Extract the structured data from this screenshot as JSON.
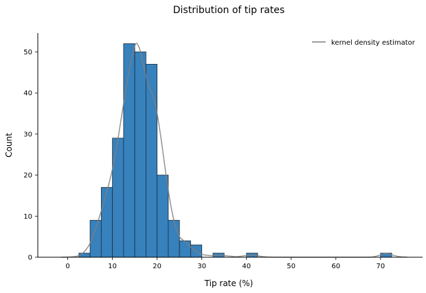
{
  "chart_data": {
    "type": "bar",
    "title": "Distribution of tip rates",
    "xlabel": "Tip rate (%)",
    "ylabel": "Count",
    "xlim": [
      -6.7,
      79.4
    ],
    "ylim": [
      0,
      54.6
    ],
    "x_ticks": [
      0,
      10,
      20,
      30,
      40,
      50,
      60,
      70
    ],
    "y_ticks": [
      0,
      10,
      20,
      30,
      40,
      50
    ],
    "grid": false,
    "legend_position": "top-right",
    "bar_color": "#3781bc",
    "bar_edge_color": "#1c2c3c",
    "kde_color": "#7f7f7f",
    "bins": [
      {
        "x0": 2.5,
        "x1": 5.0,
        "count": 1
      },
      {
        "x0": 5.0,
        "x1": 7.5,
        "count": 9
      },
      {
        "x0": 7.5,
        "x1": 10.0,
        "count": 17
      },
      {
        "x0": 10.0,
        "x1": 12.5,
        "count": 29
      },
      {
        "x0": 12.5,
        "x1": 15.0,
        "count": 52
      },
      {
        "x0": 15.0,
        "x1": 17.5,
        "count": 50
      },
      {
        "x0": 17.5,
        "x1": 20.0,
        "count": 47
      },
      {
        "x0": 20.0,
        "x1": 22.5,
        "count": 20
      },
      {
        "x0": 22.5,
        "x1": 25.0,
        "count": 9
      },
      {
        "x0": 25.0,
        "x1": 27.5,
        "count": 4
      },
      {
        "x0": 27.5,
        "x1": 30.0,
        "count": 3
      },
      {
        "x0": 32.5,
        "x1": 35.0,
        "count": 1
      },
      {
        "x0": 40.0,
        "x1": 42.5,
        "count": 1
      },
      {
        "x0": 70.0,
        "x1": 72.5,
        "count": 1
      }
    ],
    "kde": {
      "name": "kernel density estimator",
      "x": [
        -1.5,
        1,
        3,
        5,
        7,
        9,
        10.5,
        12,
        13.5,
        15,
        16,
        17,
        18,
        19,
        20,
        21,
        22,
        23,
        24,
        25,
        26,
        27,
        28,
        29,
        30,
        31,
        32,
        33,
        34,
        35,
        36,
        37,
        38,
        40,
        41,
        42,
        43,
        45,
        50,
        55,
        60,
        65,
        68,
        69.5,
        70.5,
        71.5,
        72.5,
        74,
        76
      ],
      "y": [
        0,
        0.1,
        0.7,
        3.4,
        9.5,
        17,
        24,
        34,
        44,
        51.5,
        51,
        46.5,
        42,
        39.5,
        35,
        28,
        20,
        13,
        8,
        5,
        4,
        3,
        2,
        1.2,
        0.7,
        0.5,
        0.4,
        0.45,
        0.5,
        0.4,
        0.3,
        0.2,
        0.15,
        0.4,
        0.55,
        0.45,
        0.25,
        0.05,
        0,
        0,
        0,
        0,
        0.05,
        0.4,
        0.8,
        0.9,
        0.6,
        0.2,
        0
      ]
    }
  }
}
